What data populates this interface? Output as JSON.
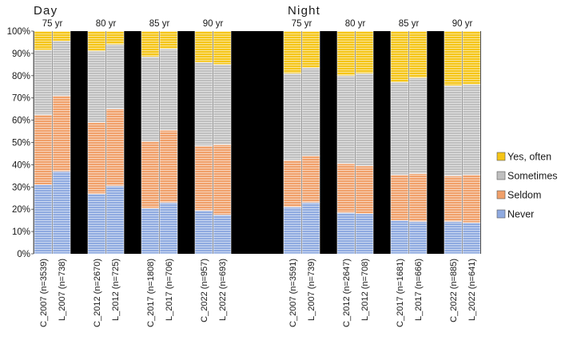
{
  "chart_data": {
    "type": "bar",
    "stacked": true,
    "normalized": true,
    "y_axis": {
      "ylim": [
        0,
        100
      ],
      "ticks": [
        "0%",
        "10%",
        "20%",
        "30%",
        "40%",
        "50%",
        "60%",
        "70%",
        "80%",
        "90%",
        "100%"
      ]
    },
    "legend": {
      "placement": "right",
      "items": [
        {
          "name": "Yes, often",
          "color": "#F5C518"
        },
        {
          "name": "Sometimes",
          "color": "#BFBFBF"
        },
        {
          "name": "Seldom",
          "color": "#F0A06A"
        },
        {
          "name": "Never",
          "color": "#8FAAE0"
        }
      ]
    },
    "series_order": [
      "Never",
      "Seldom",
      "Sometimes",
      "Yes, often"
    ],
    "colors": {
      "Never": "#8FAAE0",
      "Seldom": "#F0A06A",
      "Sometimes": "#BFBFBF",
      "Yes, often": "#F5C518"
    },
    "panels": [
      {
        "title": "Day",
        "groups": [
          {
            "age": "75 yr",
            "bars": [
              {
                "label": "C_2007 (n=3539)",
                "values": [
                  31,
                  31.5,
                  29,
                  8.5
                ]
              },
              {
                "label": "L_2007 (n=738)",
                "values": [
                  37,
                  34,
                  24.5,
                  4.5
                ]
              }
            ]
          },
          {
            "age": "80 yr",
            "bars": [
              {
                "label": "C_2012 (n=2670)",
                "values": [
                  27,
                  32,
                  32,
                  9
                ]
              },
              {
                "label": "L_2012 (n=725)",
                "values": [
                  30.5,
                  34.5,
                  29,
                  6
                ]
              }
            ]
          },
          {
            "age": "85 yr",
            "bars": [
              {
                "label": "C_2017 (n=1808)",
                "values": [
                  20.5,
                  30,
                  38,
                  11.5
                ]
              },
              {
                "label": "L_2017 (n=706)",
                "values": [
                  23,
                  32.5,
                  36.5,
                  8
                ]
              }
            ]
          },
          {
            "age": "90 yr",
            "bars": [
              {
                "label": "C_2022 (n=957)",
                "values": [
                  19.5,
                  29,
                  37.5,
                  14
                ]
              },
              {
                "label": "L_2022 (n=693)",
                "values": [
                  17.5,
                  31.5,
                  36,
                  15
                ]
              }
            ]
          }
        ]
      },
      {
        "title": "Night",
        "groups": [
          {
            "age": "75 yr",
            "bars": [
              {
                "label": "C_2007 (n=3591)",
                "values": [
                  21,
                  21,
                  39,
                  19
                ]
              },
              {
                "label": "L_2007 (n=739)",
                "values": [
                  23,
                  21,
                  39.5,
                  16.5
                ]
              }
            ]
          },
          {
            "age": "80 yr",
            "bars": [
              {
                "label": "C_2012 (n=2647)",
                "values": [
                  18.5,
                  22,
                  39.5,
                  20
                ]
              },
              {
                "label": "L_2012 (n=708)",
                "values": [
                  18,
                  21.5,
                  41.5,
                  19
                ]
              }
            ]
          },
          {
            "age": "85 yr",
            "bars": [
              {
                "label": "C_2017 (n=1681)",
                "values": [
                  15,
                  20.5,
                  41.5,
                  23
                ]
              },
              {
                "label": "L_2017 (n=666)",
                "values": [
                  14.5,
                  21.5,
                  43,
                  21
                ]
              }
            ]
          },
          {
            "age": "90 yr",
            "bars": [
              {
                "label": "C_2022 (n=885)",
                "values": [
                  14.5,
                  20.5,
                  40.5,
                  24.5
                ]
              },
              {
                "label": "L_2022 (n=641)",
                "values": [
                  14,
                  21.5,
                  40.5,
                  24
                ]
              }
            ]
          }
        ]
      }
    ]
  }
}
